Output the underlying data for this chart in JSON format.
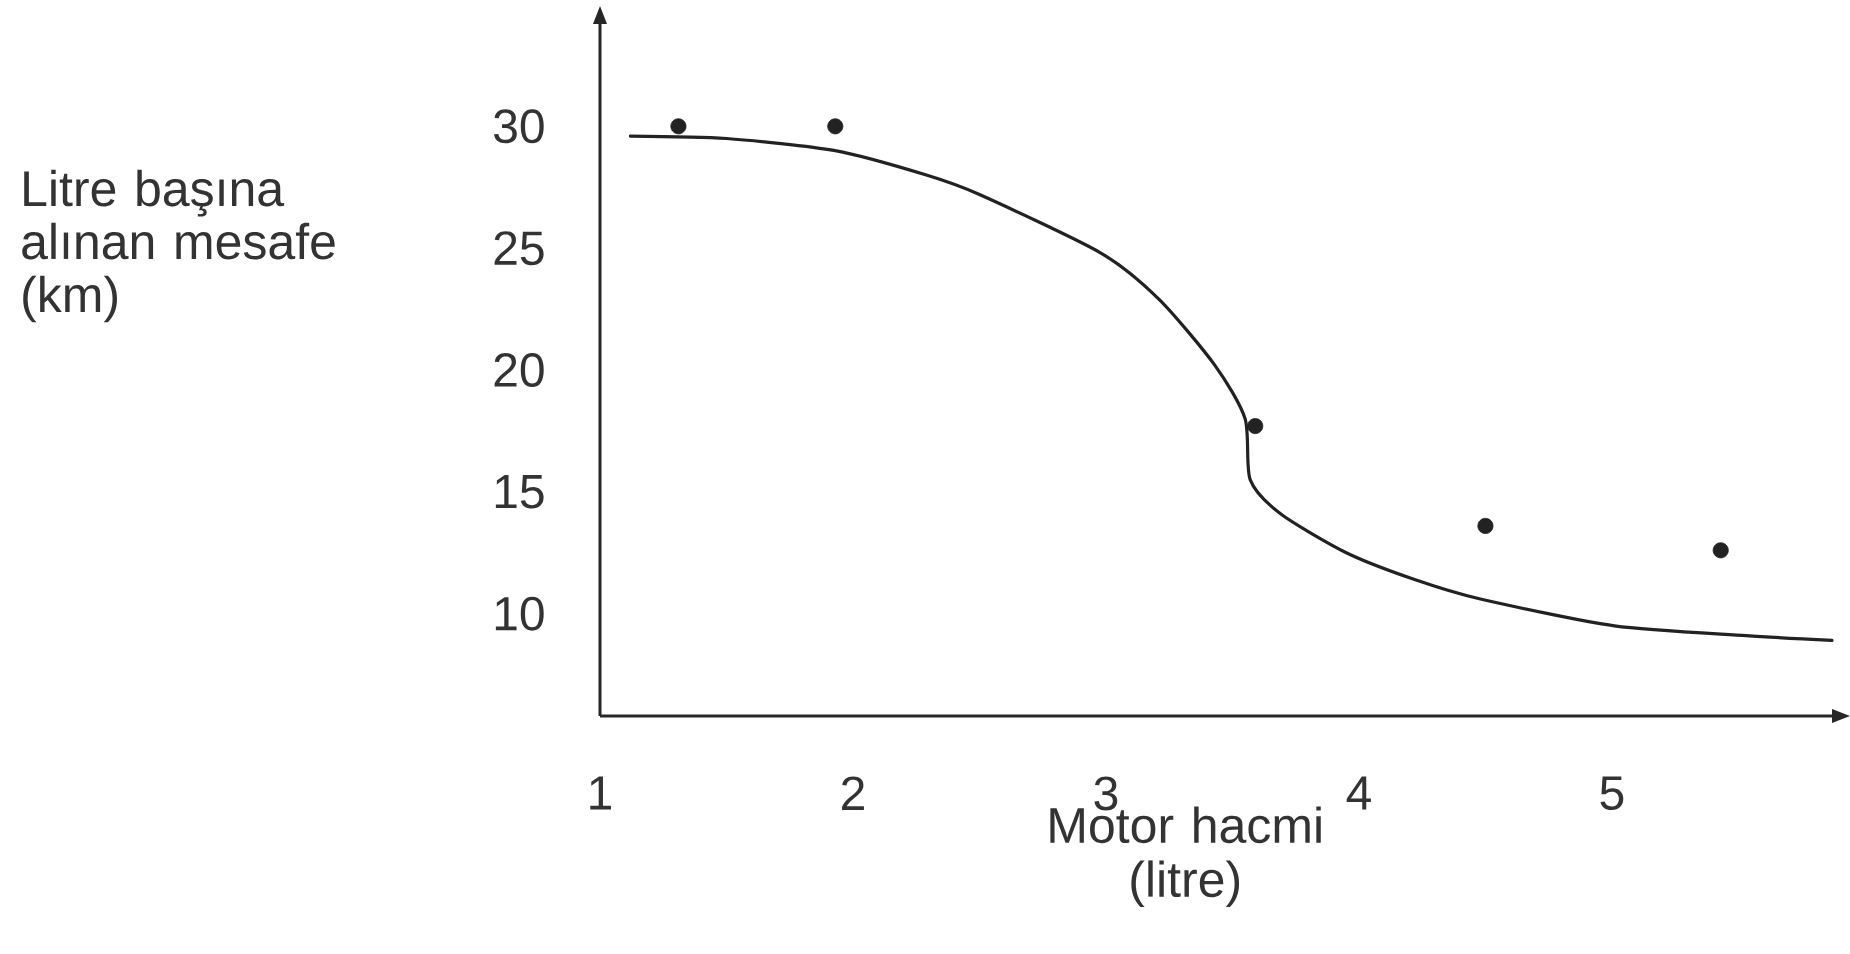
{
  "chart_data": {
    "type": "scatter",
    "xlabel": "Motor hacmi (litre)",
    "ylabel": "Litre başına alınan mesafe (km)",
    "xlim": [
      1,
      5.87
    ],
    "ylim": [
      5.8,
      34.2
    ],
    "xticks": [
      1,
      2,
      3,
      4,
      5
    ],
    "yticks": [
      10,
      15,
      20,
      25,
      30
    ],
    "grid": false,
    "marker": "circle",
    "series": [
      {
        "color": "#222222",
        "x": [
          1.31,
          1.93,
          3.59,
          4.5,
          5.43
        ],
        "values": [
          30,
          30,
          17.7,
          13.6,
          12.6
        ]
      },
      {
        "type": "line",
        "color": "#222222",
        "marker": "none",
        "x": [
          1.12,
          1.5,
          1.93,
          2.29,
          2.5,
          2.98,
          3.21,
          3.43,
          3.55,
          3.57,
          3.69,
          3.95,
          4.22,
          4.48,
          5.01,
          5.53,
          5.87
        ],
        "values": [
          29.6,
          29.5,
          29.0,
          28.0,
          27.2,
          24.8,
          22.9,
          20.2,
          18.0,
          15.5,
          14.1,
          12.5,
          11.4,
          10.6,
          9.5,
          9.1,
          8.9
        ]
      }
    ]
  }
}
